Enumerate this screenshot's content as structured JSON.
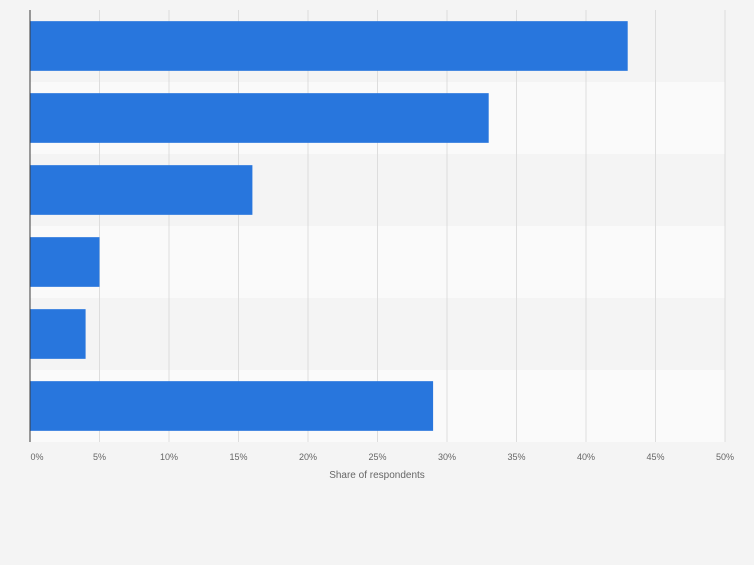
{
  "chart_data": {
    "type": "bar",
    "orientation": "horizontal",
    "categories": [
      "",
      "",
      "",
      "",
      "",
      ""
    ],
    "values": [
      43,
      33,
      16,
      5,
      4,
      29
    ],
    "xlabel": "Share of respondents",
    "ylabel": "",
    "xlim": [
      0,
      50
    ],
    "xticks": [
      "0%",
      "5%",
      "10%",
      "15%",
      "20%",
      "25%",
      "30%",
      "35%",
      "40%",
      "45%",
      "50%"
    ],
    "grid": true,
    "bar_color": "#2876dd",
    "band_colors": [
      "#f4f4f4",
      "#fafafa"
    ]
  }
}
